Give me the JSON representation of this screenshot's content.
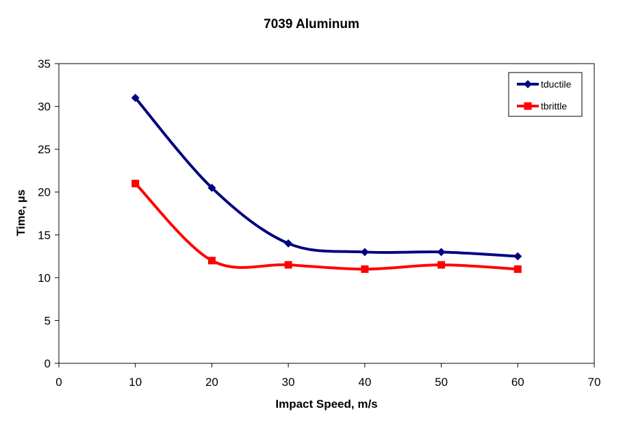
{
  "chart_data": {
    "type": "line",
    "title": "7039 Aluminum",
    "xlabel": "Impact Speed, m/s",
    "ylabel": "Time, µs",
    "xlim": [
      0,
      70
    ],
    "ylim": [
      0,
      35
    ],
    "xticks": [
      0,
      10,
      20,
      30,
      40,
      50,
      60,
      70
    ],
    "yticks": [
      0,
      5,
      10,
      15,
      20,
      25,
      30,
      35
    ],
    "grid": false,
    "smooth": true,
    "legend_position": "top-right",
    "series": [
      {
        "name": "tductile",
        "color": "#000080",
        "marker": "diamond",
        "x": [
          10,
          20,
          30,
          40,
          50,
          60
        ],
        "y": [
          31,
          20.5,
          14,
          13,
          13,
          12.5
        ]
      },
      {
        "name": "tbrittle",
        "color": "#FF0000",
        "marker": "square",
        "x": [
          10,
          20,
          30,
          40,
          50,
          60
        ],
        "y": [
          21,
          12,
          11.5,
          11,
          11.5,
          11
        ]
      }
    ]
  }
}
